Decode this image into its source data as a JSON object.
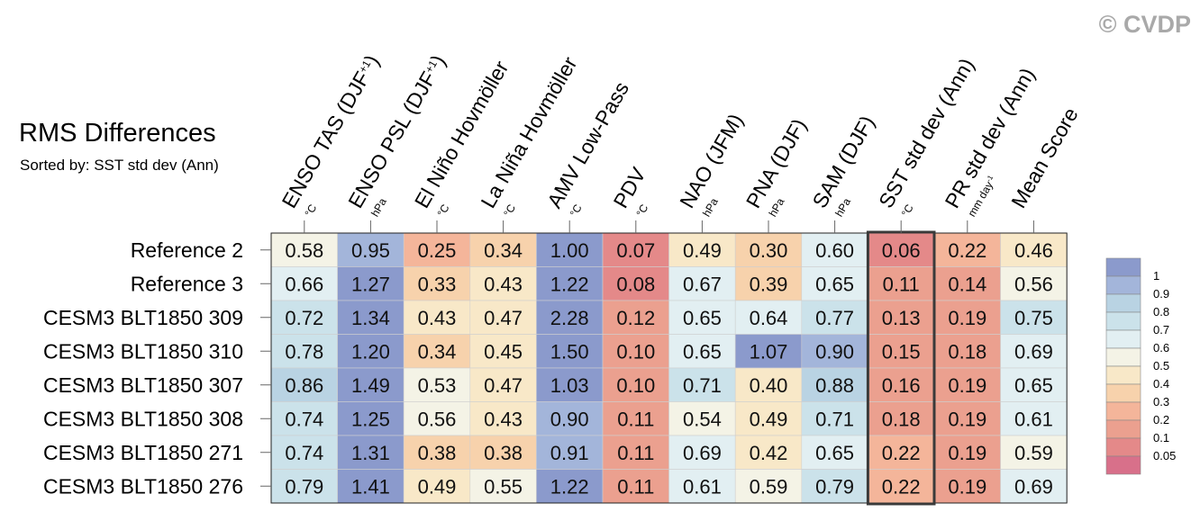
{
  "watermark": "© CVDP",
  "chart_data": {
    "type": "heatmap",
    "title": "RMS Differences",
    "subtitle": "Sorted by: SST std dev (Ann)",
    "columns": [
      {
        "label": "ENSO TAS (DJF",
        "sup": "+1",
        "close": ")",
        "unit": "°C"
      },
      {
        "label": "ENSO PSL (DJF",
        "sup": "+1",
        "close": ")",
        "unit": "hPa"
      },
      {
        "label": "El Niño Hovmöller",
        "sup": "",
        "close": "",
        "unit": "°C"
      },
      {
        "label": "La Niña Hovmöller",
        "sup": "",
        "close": "",
        "unit": "°C"
      },
      {
        "label": "AMV Low-Pass",
        "sup": "",
        "close": "",
        "unit": "°C"
      },
      {
        "label": "PDV",
        "sup": "",
        "close": "",
        "unit": "°C"
      },
      {
        "label": "NAO (JFM)",
        "sup": "",
        "close": "",
        "unit": "hPa"
      },
      {
        "label": "PNA (DJF)",
        "sup": "",
        "close": "",
        "unit": "hPa"
      },
      {
        "label": "SAM (DJF)",
        "sup": "",
        "close": "",
        "unit": "hPa"
      },
      {
        "label": "SST std dev (Ann)",
        "sup": "",
        "close": "",
        "unit": "°C"
      },
      {
        "label": "PR std dev (Ann)",
        "sup": "",
        "close": "",
        "unit": "mm day",
        "unit_sup": "-1"
      },
      {
        "label": "Mean Score",
        "sup": "",
        "close": "",
        "unit": ""
      }
    ],
    "rows": [
      "Reference 2",
      "Reference 3",
      "CESM3 BLT1850 309",
      "CESM3 BLT1850 310",
      "CESM3 BLT1850 307",
      "CESM3 BLT1850 308",
      "CESM3 BLT1850 271",
      "CESM3 BLT1850 276"
    ],
    "values": [
      [
        "0.58",
        "0.95",
        "0.25",
        "0.34",
        "1.00",
        "0.07",
        "0.49",
        "0.30",
        "0.60",
        "0.06",
        "0.22",
        "0.46"
      ],
      [
        "0.66",
        "1.27",
        "0.33",
        "0.43",
        "1.22",
        "0.08",
        "0.67",
        "0.39",
        "0.65",
        "0.11",
        "0.14",
        "0.56"
      ],
      [
        "0.72",
        "1.34",
        "0.43",
        "0.47",
        "2.28",
        "0.12",
        "0.65",
        "0.64",
        "0.77",
        "0.13",
        "0.19",
        "0.75"
      ],
      [
        "0.78",
        "1.20",
        "0.34",
        "0.45",
        "1.50",
        "0.10",
        "0.65",
        "1.07",
        "0.90",
        "0.15",
        "0.18",
        "0.69"
      ],
      [
        "0.86",
        "1.49",
        "0.53",
        "0.47",
        "1.03",
        "0.10",
        "0.71",
        "0.40",
        "0.88",
        "0.16",
        "0.19",
        "0.65"
      ],
      [
        "0.74",
        "1.25",
        "0.56",
        "0.43",
        "0.90",
        "0.11",
        "0.54",
        "0.49",
        "0.71",
        "0.18",
        "0.19",
        "0.61"
      ],
      [
        "0.74",
        "1.31",
        "0.38",
        "0.38",
        "0.91",
        "0.11",
        "0.69",
        "0.42",
        "0.65",
        "0.22",
        "0.19",
        "0.59"
      ],
      [
        "0.79",
        "1.41",
        "0.49",
        "0.55",
        "1.22",
        "0.11",
        "0.61",
        "0.59",
        "0.79",
        "0.22",
        "0.19",
        "0.69"
      ]
    ],
    "highlight_column": "SST std dev (Ann)",
    "colorbar": {
      "levels": [
        "1",
        "0.9",
        "0.8",
        "0.7",
        "0.6",
        "0.5",
        "0.4",
        "0.3",
        "0.2",
        "0.1",
        "0.05"
      ],
      "colors": [
        "#8b9acc",
        "#a3b5da",
        "#b9d3e3",
        "#cbe2ea",
        "#e2eff2",
        "#f4f3e6",
        "#f8e8c8",
        "#f7d2ac",
        "#f4b59a",
        "#eba08f",
        "#e48989",
        "#d8708a"
      ]
    }
  }
}
